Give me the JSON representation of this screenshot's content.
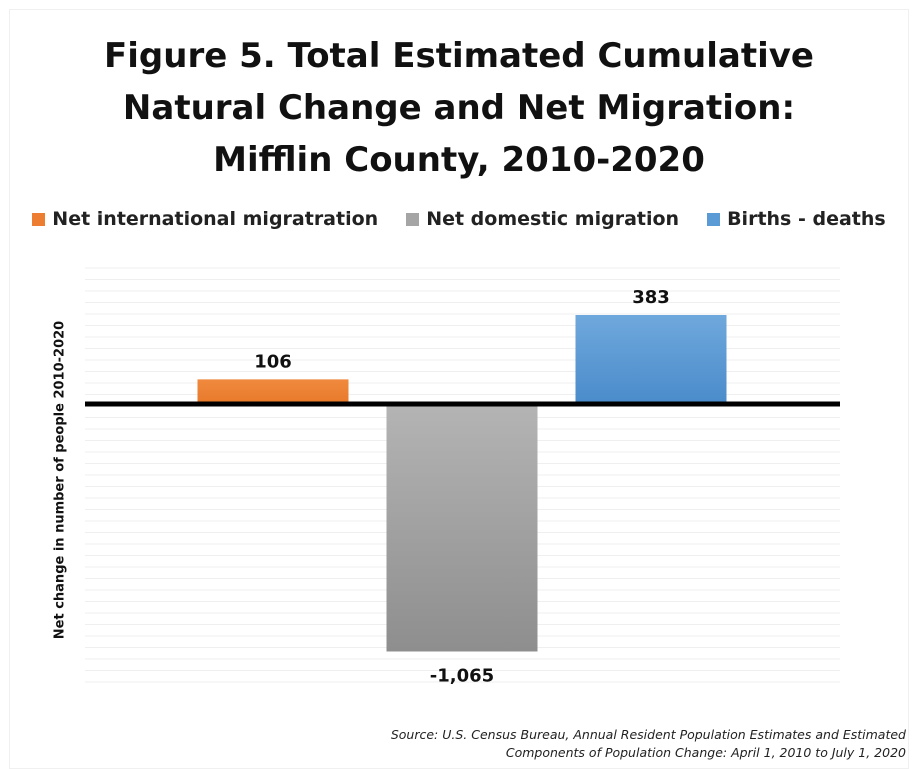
{
  "chart_data": {
    "type": "bar",
    "title_lines": [
      "Figure 5. Total Estimated Cumulative",
      "Natural Change and Net Migration:",
      "Mifflin County, 2010-2020"
    ],
    "ylabel": "Net change in number of people 2010-2020",
    "categories": [
      "Net international migratration",
      "Net domestic migration",
      "Births  - deaths"
    ],
    "values": [
      106,
      -1065,
      383
    ],
    "data_labels": [
      "106",
      "-1,065",
      "383"
    ],
    "colors": [
      "#ED7D31",
      "#A5A5A5",
      "#5B9BD5"
    ],
    "ylim": [
      -1200,
      600
    ],
    "legend_position": "top",
    "grid": true
  },
  "source_lines": [
    "Source: U.S. Census Bureau, Annual Resident Population Estimates and Estimated",
    "Components of Population Change: April 1, 2010 to July 1, 2020"
  ]
}
